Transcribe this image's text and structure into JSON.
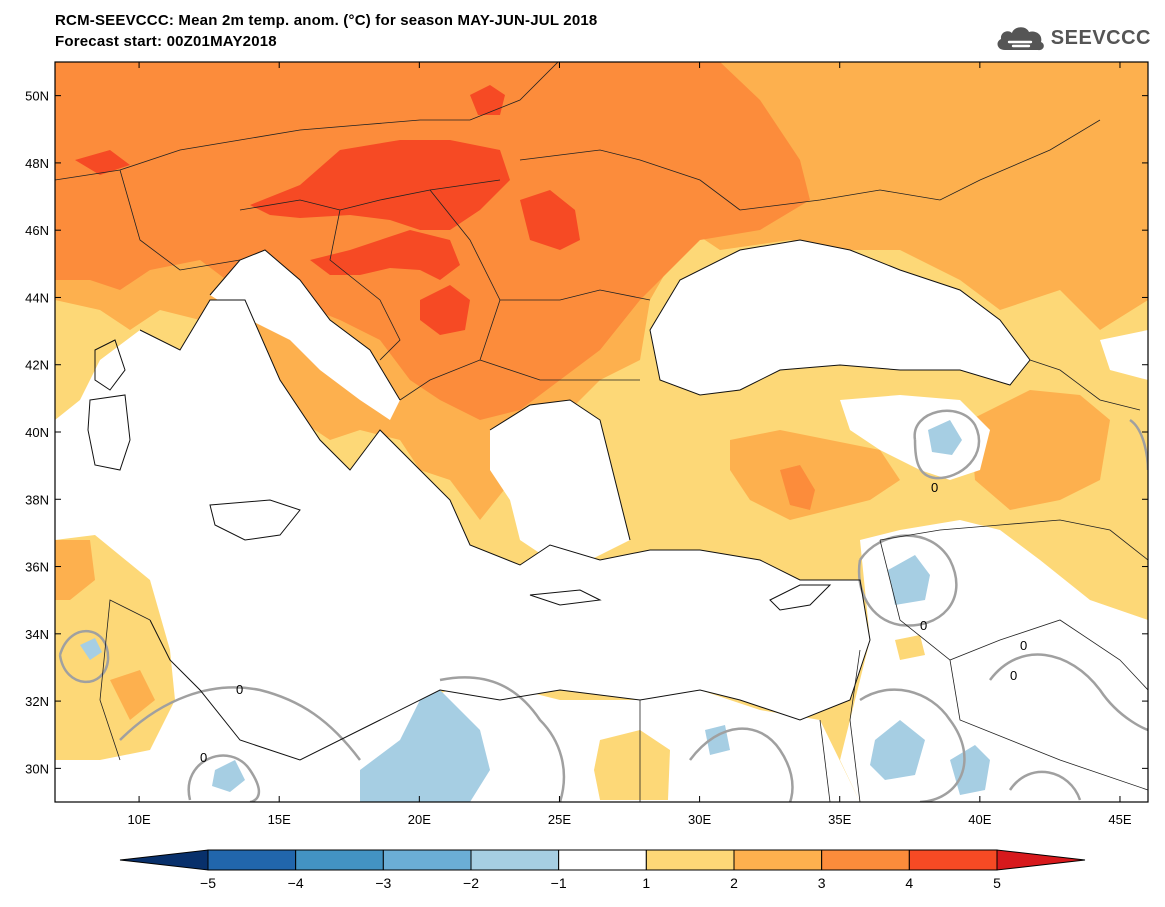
{
  "header": {
    "title_line1": "RCM-SEEVCCC: Mean 2m temp. anom. (°C) for season MAY-JUN-JUL 2018",
    "title_line2": "Forecast start: 00Z01MAY2018",
    "logo_text": "SEEVCCC",
    "logo_icon": "cloud-icon"
  },
  "map": {
    "lon_range": [
      7,
      46
    ],
    "lat_range": [
      29,
      51
    ],
    "lat_ticks": [
      "50N",
      "48N",
      "46N",
      "44N",
      "42N",
      "40N",
      "38N",
      "36N",
      "34N",
      "32N",
      "30N"
    ],
    "lat_tick_values": [
      50,
      48,
      46,
      44,
      42,
      40,
      38,
      36,
      34,
      32,
      30
    ],
    "lon_ticks": [
      "10E",
      "15E",
      "20E",
      "25E",
      "30E",
      "35E",
      "40E",
      "45E"
    ],
    "lon_tick_values": [
      10,
      15,
      20,
      25,
      30,
      35,
      40,
      45
    ],
    "contour_label": "0"
  },
  "colorbar": {
    "labels": [
      "-5",
      "-4",
      "-3",
      "-2",
      "-1",
      "1",
      "2",
      "3",
      "4",
      "5"
    ],
    "colors": [
      "#08306b",
      "#2166ac",
      "#4393c3",
      "#6baed6",
      "#a6cee3",
      "#ffffff",
      "#fdd877",
      "#fdb04e",
      "#fc8c3b",
      "#f64a24",
      "#d7191c"
    ],
    "palette": {
      "above_1": "#fdd877",
      "above_2": "#fdb04e",
      "above_3": "#fc8c3b",
      "above_4": "#f64a24",
      "below_minus1": "#a6cee3"
    }
  }
}
